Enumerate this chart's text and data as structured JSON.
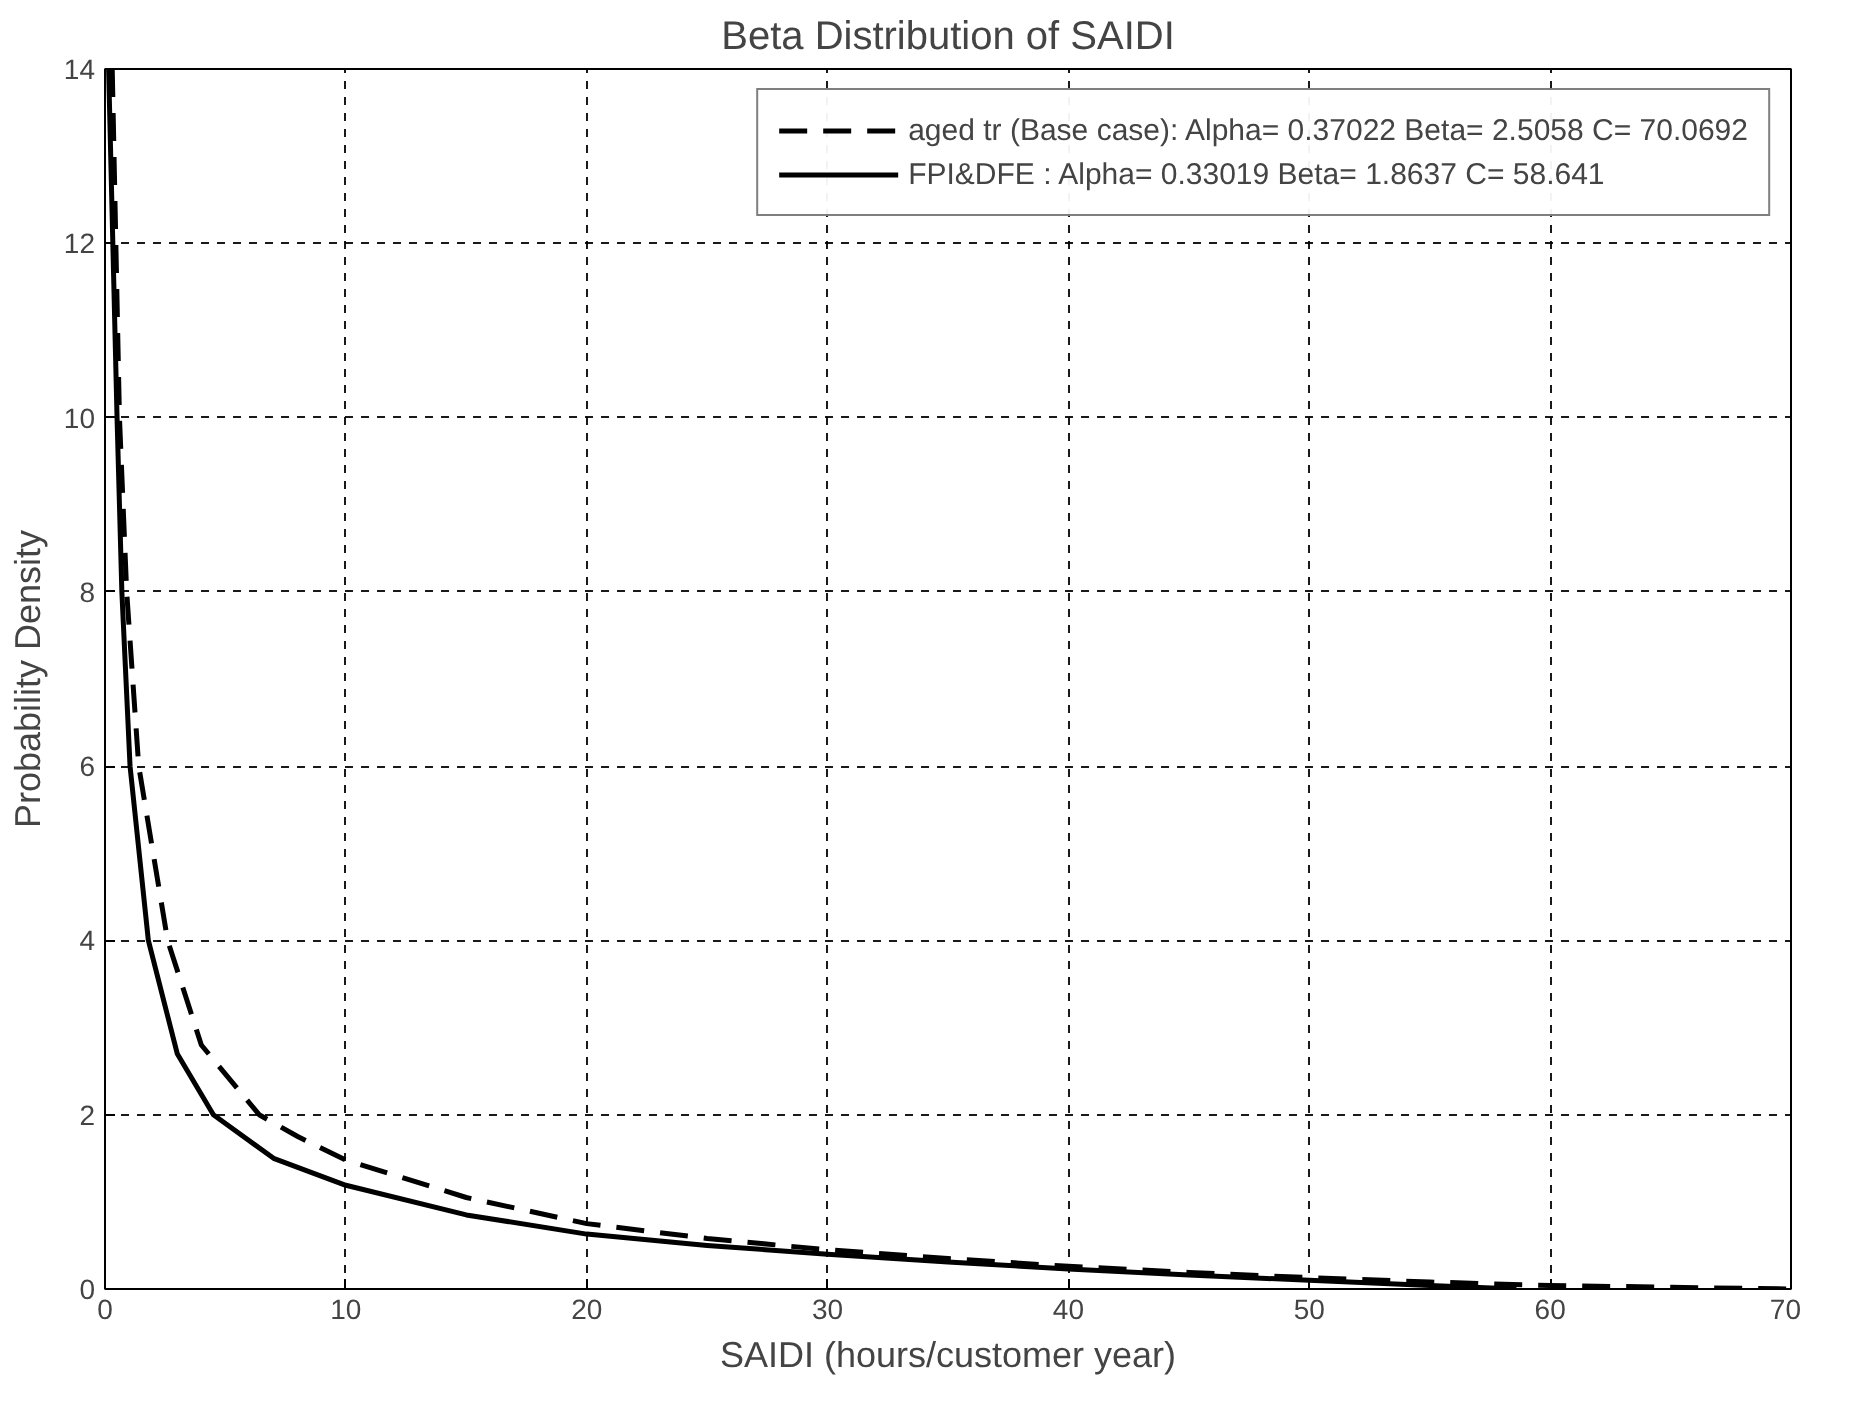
{
  "chart_data": {
    "type": "line",
    "title": "Beta Distribution of SAIDI",
    "xlabel": "SAIDI (hours/customer year)",
    "ylabel": "Probability Density",
    "xlim": [
      0,
      70
    ],
    "ylim": [
      0,
      14
    ],
    "xticks": [
      0,
      10,
      20,
      30,
      40,
      50,
      60,
      70
    ],
    "yticks": [
      0,
      2,
      4,
      6,
      8,
      10,
      12,
      14
    ],
    "grid": true,
    "legend": "top right",
    "series": [
      {
        "name": "aged tr (Base case): Alpha= 0.37022 Beta= 2.5058 C= 70.0692",
        "color": "#000000",
        "line_style": "dashed",
        "x": [
          0.3,
          0.6,
          0.9,
          1.4,
          2.6,
          4,
          6.4,
          8,
          10,
          15,
          20,
          25,
          30,
          35,
          40,
          45,
          50,
          55,
          60,
          65,
          70
        ],
        "values": [
          14,
          10,
          8,
          6,
          4,
          2.8,
          2,
          1.75,
          1.48,
          1.05,
          0.75,
          0.58,
          0.45,
          0.35,
          0.26,
          0.19,
          0.13,
          0.08,
          0.04,
          0.02,
          0
        ]
      },
      {
        "name": "FPI&DFE : Alpha= 0.33019 Beta= 1.8637 C= 58.641",
        "color": "#000000",
        "line_style": "solid",
        "x": [
          0.15,
          0.5,
          0.7,
          1.04,
          1.8,
          3,
          4.5,
          7,
          10,
          15,
          20,
          25,
          30,
          35,
          40,
          45,
          50,
          55,
          58.6
        ],
        "values": [
          14,
          10,
          8,
          6,
          4,
          2.7,
          2,
          1.5,
          1.19,
          0.85,
          0.63,
          0.5,
          0.4,
          0.31,
          0.23,
          0.16,
          0.1,
          0.04,
          0
        ]
      }
    ]
  }
}
